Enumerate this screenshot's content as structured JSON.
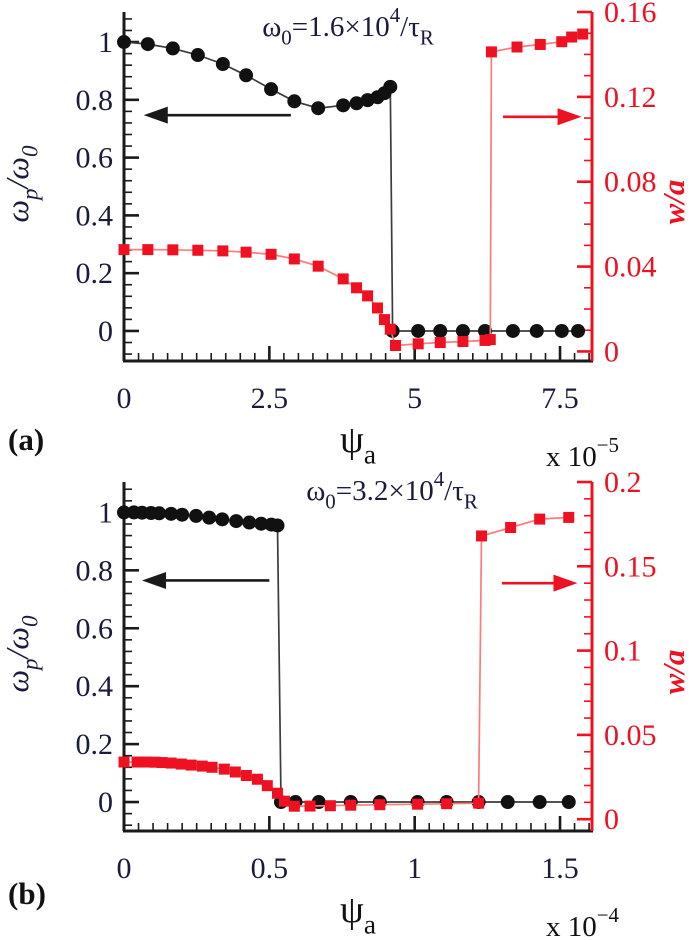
{
  "colors": {
    "black_axis": "#1a1a1a",
    "tick_text": "#1b1b3d",
    "red": "#ee1122",
    "red_line": "#ff7a7a",
    "black_line": "#3c3c3c",
    "background": "#ffffff"
  },
  "chart_data": [
    {
      "id": "a",
      "type": "line",
      "label": "(a)",
      "annotation": [
        {
          "t": "ω"
        },
        {
          "t": "0",
          "sub": true
        },
        {
          "t": "=1.6×10"
        },
        {
          "t": "4",
          "sup": true
        },
        {
          "t": "/τ"
        },
        {
          "t": "R",
          "sub": true
        }
      ],
      "xlabel": [
        {
          "t": "ψ"
        },
        {
          "t": "a",
          "sub": true
        }
      ],
      "x_scale_label": [
        {
          "t": "x 10"
        },
        {
          "t": "−5",
          "sup": true
        }
      ],
      "ylabel_left": [
        {
          "t": "ω"
        },
        {
          "t": "p",
          "sub": true
        },
        {
          "t": "/ω"
        },
        {
          "t": "0",
          "sub": true
        }
      ],
      "ylabel_right": [
        {
          "t": "w/a"
        }
      ],
      "xlim": [
        0,
        8.05
      ],
      "xticks": [
        0,
        2.5,
        5,
        7.5
      ],
      "xtick_labels": [
        "0",
        "2.5",
        "5",
        "7.5"
      ],
      "x_minor": 0.25,
      "ylim_left": [
        -0.104,
        1.104
      ],
      "yticks_left": [
        1,
        0.8,
        0.6,
        0.4,
        0.2,
        0
      ],
      "ytick_labels_left": [
        "1",
        "0.8",
        "0.6",
        "0.4",
        "0.2",
        "0"
      ],
      "y_minor_left": 0.04,
      "ylim_right": [
        -0.0045,
        0.16
      ],
      "yticks_right": [
        0.16,
        0.12,
        0.08,
        0.04,
        0
      ],
      "ytick_labels_right": [
        "0.16",
        "0.12",
        "0.08",
        "0.04",
        "0"
      ],
      "y_minor_right": 0.01,
      "series": [
        {
          "name": "omega_p/omega_0",
          "axis": "left",
          "marker": "circle",
          "points": [
            [
              0,
              1.0
            ],
            [
              0.41,
              0.993
            ],
            [
              0.84,
              0.978
            ],
            [
              1.27,
              0.955
            ],
            [
              1.7,
              0.924
            ],
            [
              2.1,
              0.885
            ],
            [
              2.53,
              0.837
            ],
            [
              2.93,
              0.795
            ],
            [
              3.34,
              0.771
            ],
            [
              3.77,
              0.781
            ],
            [
              4.0,
              0.788
            ],
            [
              4.19,
              0.799
            ],
            [
              4.36,
              0.809
            ],
            [
              4.48,
              0.823
            ],
            [
              4.58,
              0.845
            ],
            [
              4.62,
              0.0
            ],
            [
              5.06,
              0.0
            ],
            [
              5.44,
              0.0
            ],
            [
              5.83,
              0.0
            ],
            [
              6.21,
              0.0
            ],
            [
              6.69,
              0.0
            ],
            [
              7.1,
              0.0
            ],
            [
              7.53,
              0.0
            ],
            [
              7.81,
              0.0
            ]
          ]
        },
        {
          "name": "w/a",
          "axis": "right",
          "marker": "square",
          "points": [
            [
              0,
              0.048
            ],
            [
              0.41,
              0.048
            ],
            [
              0.84,
              0.0479
            ],
            [
              1.27,
              0.0477
            ],
            [
              1.7,
              0.0474
            ],
            [
              2.1,
              0.0468
            ],
            [
              2.53,
              0.0458
            ],
            [
              2.93,
              0.0436
            ],
            [
              3.34,
              0.0402
            ],
            [
              3.77,
              0.0342
            ],
            [
              4.0,
              0.03
            ],
            [
              4.19,
              0.0262
            ],
            [
              4.36,
              0.0205
            ],
            [
              4.48,
              0.015
            ],
            [
              4.58,
              0.0105
            ],
            [
              4.67,
              0.0028
            ],
            [
              5.06,
              0.0036
            ],
            [
              5.44,
              0.0042
            ],
            [
              5.83,
              0.0047
            ],
            [
              6.21,
              0.0052
            ],
            [
              6.3,
              0.0056
            ],
            [
              6.32,
              0.1412
            ],
            [
              6.76,
              0.1435
            ],
            [
              7.16,
              0.1447
            ],
            [
              7.53,
              0.146
            ],
            [
              7.7,
              0.1482
            ],
            [
              7.89,
              0.1496
            ]
          ]
        }
      ],
      "arrows": [
        {
          "color_key": "black",
          "axis": "left",
          "y": 0.747,
          "tail_x": 2.87,
          "tip_x": 0.34
        },
        {
          "color_key": "red",
          "axis": "right",
          "y": 0.1106,
          "tail_x": 6.52,
          "tip_x": 7.87
        }
      ]
    },
    {
      "id": "b",
      "type": "line",
      "label": "(b)",
      "annotation": [
        {
          "t": "ω"
        },
        {
          "t": "0",
          "sub": true
        },
        {
          "t": "=3.2×10"
        },
        {
          "t": "4",
          "sup": true
        },
        {
          "t": "/τ"
        },
        {
          "t": "R",
          "sub": true
        }
      ],
      "xlabel": [
        {
          "t": "ψ"
        },
        {
          "t": "a",
          "sub": true
        }
      ],
      "x_scale_label": [
        {
          "t": "x 10"
        },
        {
          "t": "−4",
          "sup": true
        }
      ],
      "ylabel_left": [
        {
          "t": "ω"
        },
        {
          "t": "p",
          "sub": true
        },
        {
          "t": "/ω"
        },
        {
          "t": "0",
          "sub": true
        }
      ],
      "ylabel_right": [
        {
          "t": "w/a"
        }
      ],
      "xlim": [
        0,
        1.61
      ],
      "xticks": [
        0,
        0.5,
        1,
        1.5
      ],
      "xtick_labels": [
        "0",
        "0.5",
        "1",
        "1.5"
      ],
      "x_minor": 0.05,
      "ylim_left": [
        -0.1,
        1.105
      ],
      "yticks_left": [
        1,
        0.8,
        0.6,
        0.4,
        0.2,
        0
      ],
      "ytick_labels_left": [
        "1",
        "0.8",
        "0.6",
        "0.4",
        "0.2",
        "0"
      ],
      "y_minor_left": 0.04,
      "ylim_right": [
        -0.007,
        0.2
      ],
      "yticks_right": [
        0.2,
        0.15,
        0.1,
        0.05,
        0
      ],
      "ytick_labels_right": [
        "0.2",
        "0.15",
        "0.1",
        "0.05",
        "0"
      ],
      "y_minor_right": 0.01,
      "series": [
        {
          "name": "omega_p/omega_0",
          "axis": "left",
          "marker": "circle",
          "points": [
            [
              0,
              1.0
            ],
            [
              0.034,
              1.0
            ],
            [
              0.062,
              0.999
            ],
            [
              0.093,
              0.998
            ],
            [
              0.121,
              0.997
            ],
            [
              0.162,
              0.995
            ],
            [
              0.2,
              0.992
            ],
            [
              0.248,
              0.988
            ],
            [
              0.293,
              0.982
            ],
            [
              0.338,
              0.976
            ],
            [
              0.386,
              0.97
            ],
            [
              0.431,
              0.965
            ],
            [
              0.472,
              0.961
            ],
            [
              0.507,
              0.958
            ],
            [
              0.528,
              0.955
            ],
            [
              0.54,
              0.0
            ],
            [
              0.59,
              0.0
            ],
            [
              0.67,
              0.0
            ],
            [
              0.78,
              0.0
            ],
            [
              0.88,
              0.0
            ],
            [
              1.01,
              0.0
            ],
            [
              1.11,
              0.0
            ],
            [
              1.22,
              0.0
            ],
            [
              1.32,
              0.0
            ],
            [
              1.43,
              0.0
            ],
            [
              1.53,
              0.0
            ]
          ]
        },
        {
          "name": "w/a",
          "axis": "right",
          "marker": "square",
          "points": [
            [
              0,
              0.0339
            ],
            [
              0.045,
              0.0339
            ],
            [
              0.079,
              0.0339
            ],
            [
              0.107,
              0.0338
            ],
            [
              0.131,
              0.0336
            ],
            [
              0.162,
              0.0333
            ],
            [
              0.197,
              0.0327
            ],
            [
              0.231,
              0.0321
            ],
            [
              0.269,
              0.0315
            ],
            [
              0.303,
              0.0308
            ],
            [
              0.345,
              0.0297
            ],
            [
              0.383,
              0.028
            ],
            [
              0.421,
              0.0259
            ],
            [
              0.459,
              0.0237
            ],
            [
              0.493,
              0.0199
            ],
            [
              0.528,
              0.0154
            ],
            [
              0.552,
              0.0107
            ],
            [
              0.586,
              0.0077
            ],
            [
              0.64,
              0.0078
            ],
            [
              0.71,
              0.008
            ],
            [
              0.78,
              0.0083
            ],
            [
              0.88,
              0.0086
            ],
            [
              1.01,
              0.0089
            ],
            [
              1.11,
              0.0092
            ],
            [
              1.22,
              0.0095
            ],
            [
              1.23,
              0.168
            ],
            [
              1.33,
              0.173
            ],
            [
              1.43,
              0.178
            ],
            [
              1.53,
              0.179
            ]
          ]
        }
      ],
      "arrows": [
        {
          "color_key": "black",
          "axis": "left",
          "y": 0.765,
          "tail_x": 0.5,
          "tip_x": 0.062
        },
        {
          "color_key": "red",
          "axis": "right",
          "y": 0.14,
          "tail_x": 1.3,
          "tip_x": 1.56
        }
      ]
    }
  ]
}
